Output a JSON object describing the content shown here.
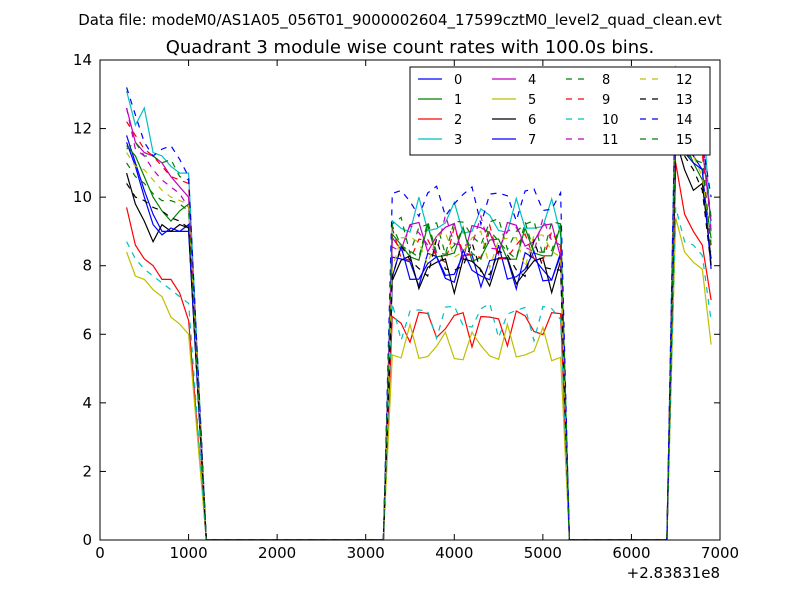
{
  "chart_data": {
    "type": "line",
    "suptitle": "Data file: modeM0/AS1A05_056T01_9000002604_17599cztM0_level2_quad_clean.evt",
    "title": "Quadrant 3 module wise count rates with 100.0s bins.",
    "xlabel": "",
    "ylabel": "",
    "x_offset_label": "+2.83831e8",
    "xlim": [
      0,
      7000
    ],
    "ylim": [
      0,
      14
    ],
    "xticks": [
      0,
      1000,
      2000,
      3000,
      4000,
      5000,
      6000,
      7000
    ],
    "xtick_labels": [
      "0",
      "1000",
      "2000",
      "3000",
      "4000",
      "5000",
      "6000",
      "7000"
    ],
    "yticks": [
      0,
      2,
      4,
      6,
      8,
      10,
      12,
      14
    ],
    "ytick_labels": [
      "0",
      "2",
      "4",
      "6",
      "8",
      "10",
      "12",
      "14"
    ],
    "grid": false,
    "legend_position": "top-right",
    "segments": [
      {
        "x_start": 300,
        "x_step": 100,
        "n": 8
      },
      {
        "x_start": 1200,
        "x_step": 100,
        "n": 21
      },
      {
        "x_start": 3300,
        "x_step": 100,
        "n": 20
      },
      {
        "x_start": 5300,
        "x_step": 100,
        "n": 12
      },
      {
        "x_start": 6500,
        "x_step": 100,
        "n": 5
      }
    ],
    "series": [
      {
        "name": "0",
        "color": "#0000ff",
        "dash": "solid",
        "level": [
          11.8,
          11.0,
          10.2,
          9.5,
          9.0,
          9.0,
          9.0,
          9.2
        ],
        "level2": 8.0,
        "level3": [
          12.5,
          11.5,
          11.2,
          10.8,
          8.0
        ]
      },
      {
        "name": "1",
        "color": "#008000",
        "dash": "solid",
        "level": [
          11.5,
          11.2,
          10.6,
          10.0,
          9.6,
          9.3,
          9.6,
          9.8
        ],
        "level2": 8.5,
        "level3": [
          12.3,
          11.6,
          11.0,
          10.5,
          8.8
        ]
      },
      {
        "name": "2",
        "color": "#ff0000",
        "dash": "solid",
        "level": [
          9.7,
          8.6,
          8.2,
          8.0,
          7.6,
          7.6,
          7.2,
          6.4
        ],
        "level2": 6.3,
        "level3": [
          11.0,
          9.5,
          9.0,
          8.6,
          7.0
        ]
      },
      {
        "name": "3",
        "color": "#00bfbf",
        "dash": "solid",
        "level": [
          13.1,
          12.1,
          12.6,
          11.3,
          11.2,
          10.9,
          10.7,
          10.7
        ],
        "level2": 9.3,
        "level3": [
          13.8,
          13.5,
          13.1,
          12.8,
          9.0
        ]
      },
      {
        "name": "4",
        "color": "#bf00bf",
        "dash": "solid",
        "level": [
          12.6,
          11.6,
          11.3,
          11.2,
          11.0,
          10.6,
          10.3,
          10.0
        ],
        "level2": 8.9,
        "level3": [
          12.9,
          12.3,
          11.9,
          11.4,
          9.3
        ]
      },
      {
        "name": "5",
        "color": "#bfbf00",
        "dash": "solid",
        "level": [
          8.4,
          7.7,
          7.6,
          7.3,
          7.1,
          6.5,
          6.3,
          6.0
        ],
        "level2": 5.6,
        "level3": [
          9.4,
          8.4,
          8.1,
          7.9,
          5.7
        ]
      },
      {
        "name": "6",
        "color": "#000000",
        "dash": "solid",
        "level": [
          10.7,
          9.8,
          9.3,
          8.7,
          9.2,
          9.0,
          9.2,
          9.1
        ],
        "level2": 7.9,
        "level3": [
          11.7,
          10.8,
          10.2,
          10.4,
          8.2
        ]
      },
      {
        "name": "7",
        "color": "#0000ff",
        "dash": "solid",
        "level": [
          11.6,
          10.9,
          10.0,
          9.2,
          8.9,
          9.1,
          9.0,
          9.0
        ],
        "level2": 7.9,
        "level3": [
          12.2,
          11.3,
          11.0,
          10.8,
          7.9
        ]
      },
      {
        "name": "8",
        "color": "#008000",
        "dash": "dashed",
        "level": [
          11.4,
          11.6,
          11.2,
          11.2,
          11.0,
          11.1,
          10.6,
          10.5
        ],
        "level2": 9.0,
        "level3": [
          12.7,
          12.0,
          11.9,
          11.6,
          9.4
        ]
      },
      {
        "name": "9",
        "color": "#ff0000",
        "dash": "dashed",
        "level": [
          12.2,
          11.8,
          11.4,
          11.2,
          10.9,
          10.6,
          10.5,
          10.4
        ],
        "level2": 8.5,
        "level3": [
          12.9,
          11.9,
          11.6,
          11.3,
          8.4
        ]
      },
      {
        "name": "10",
        "color": "#00bfbf",
        "dash": "dashed",
        "level": [
          8.7,
          8.2,
          7.9,
          7.7,
          7.5,
          7.3,
          7.1,
          6.9
        ],
        "level2": 6.5,
        "level3": [
          9.7,
          8.7,
          8.6,
          8.3,
          6.4
        ]
      },
      {
        "name": "11",
        "color": "#bf00bf",
        "dash": "dashed",
        "level": [
          12.6,
          11.4,
          11.2,
          10.8,
          10.5,
          10.3,
          10.1,
          9.7
        ],
        "level2": 8.8,
        "level3": [
          13.0,
          12.6,
          12.5,
          11.9,
          9.0
        ]
      },
      {
        "name": "12",
        "color": "#bfbf00",
        "dash": "dashed",
        "level": [
          11.3,
          10.9,
          10.8,
          10.5,
          10.2,
          10.0,
          9.9,
          9.8
        ],
        "level2": 8.6,
        "level3": [
          12.8,
          11.8,
          11.2,
          10.6,
          8.7
        ]
      },
      {
        "name": "13",
        "color": "#000000",
        "dash": "dashed",
        "level": [
          10.4,
          10.0,
          9.9,
          9.7,
          9.6,
          9.4,
          9.3,
          9.1
        ],
        "level2": 8.1,
        "level3": [
          11.3,
          11.2,
          10.8,
          10.2,
          8.0
        ]
      },
      {
        "name": "14",
        "color": "#0000ff",
        "dash": "dashed",
        "level": [
          13.2,
          12.4,
          11.6,
          11.2,
          11.4,
          11.5,
          11.1,
          10.6
        ],
        "level2": 9.9,
        "level3": [
          13.6,
          12.6,
          11.4,
          11.6,
          10.0
        ]
      },
      {
        "name": "15",
        "color": "#008000",
        "dash": "dashed",
        "level": [
          11.0,
          10.6,
          10.4,
          10.1,
          9.9,
          9.9,
          9.8,
          9.6
        ],
        "level2": 8.6,
        "level3": [
          12.1,
          11.3,
          11.1,
          11.0,
          8.6
        ]
      }
    ]
  }
}
